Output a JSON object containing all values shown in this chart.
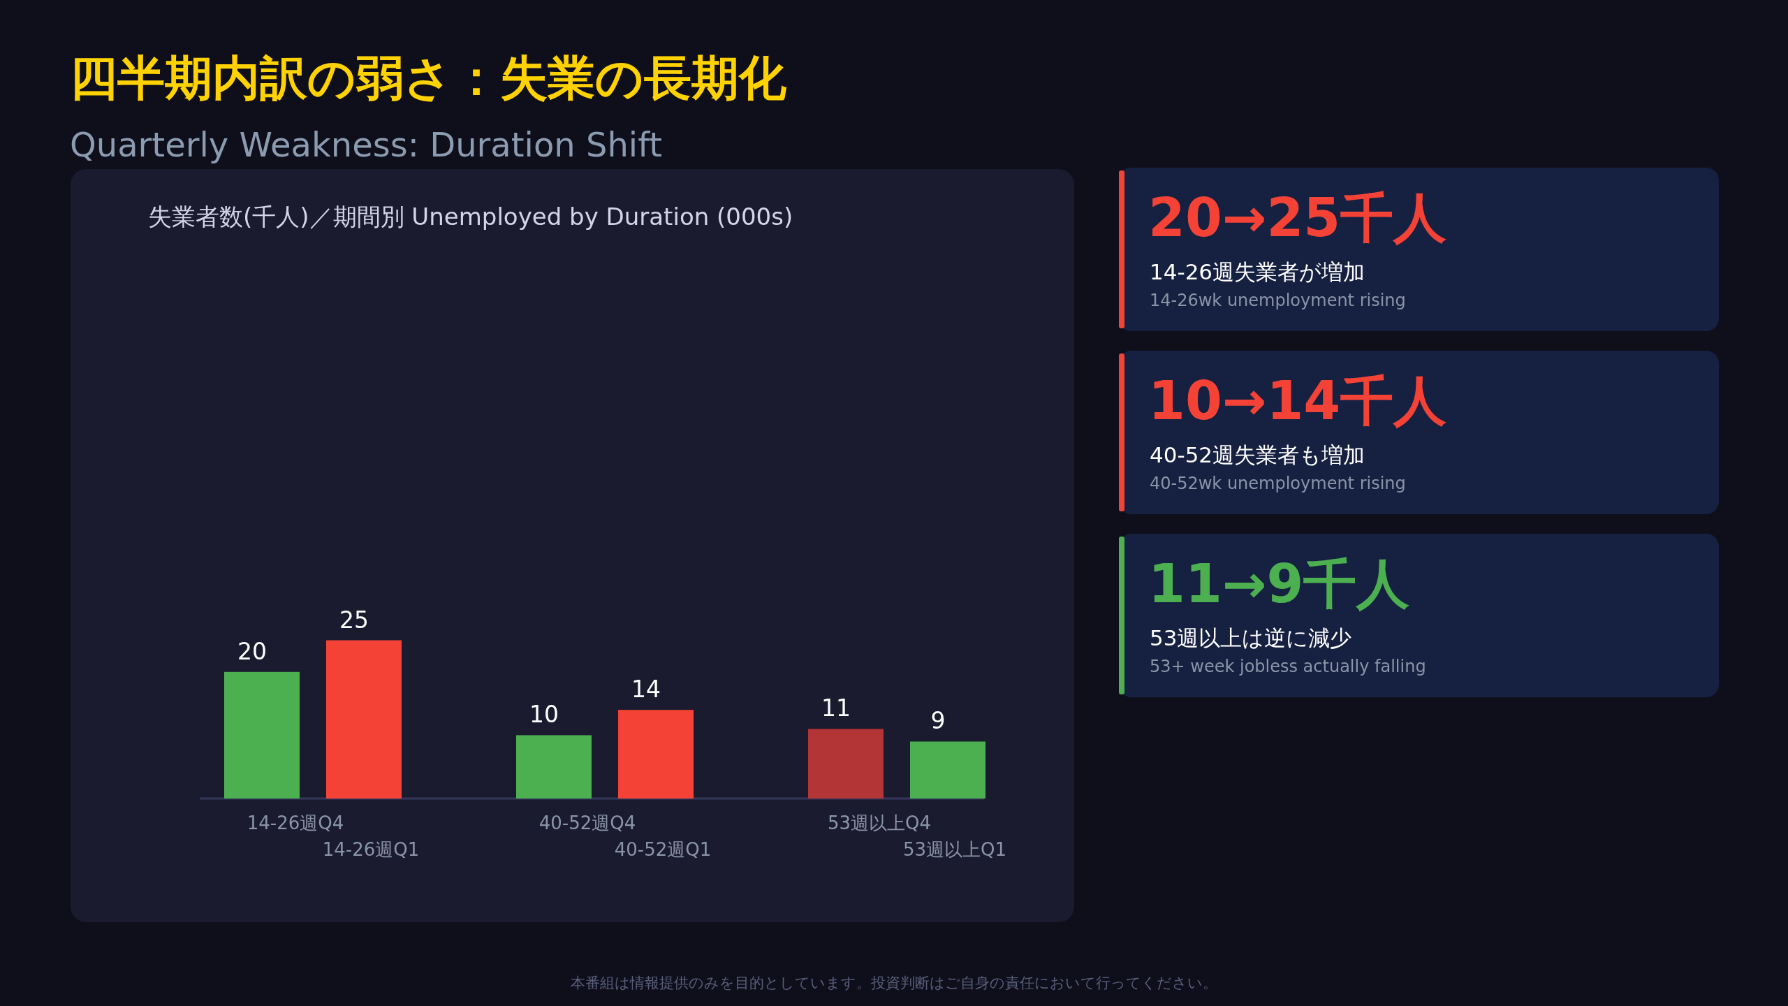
{
  "chart_data": [
    {
      "type": "bar",
      "title": "四半期内訳の弱さ：失業の長期化",
      "subtitle": "Quarterly Weakness: Duration Shift",
      "categories": [
        "14-26週Q4",
        "14-26週Q1",
        "40-52週Q4",
        "40-52週Q1",
        "53週以上Q4",
        "53週以上Q1"
      ],
      "values": [
        20,
        25,
        10,
        14,
        11,
        9
      ],
      "colors": [
        "#4caf50",
        "#f44336",
        "#4caf50",
        "#f44336",
        "#b33535",
        "#4caf50"
      ],
      "data_labels": true,
      "annotations": [
        "失業者数(千人)／期間別 Unemployed by Duration (000s)",
        "本番組は情報提供のみを目的としています。投資判断はご自身の責任において行ってください。"
      ]
    },
    {
      "type": "other",
      "title": "20→25千人",
      "subtitle": "14-26週失業者が増加",
      "annotations": [
        "14-26wk unemployment rising"
      ],
      "color": "#f44336"
    },
    {
      "type": "other",
      "title": "10→14千人",
      "subtitle": "40-52週失業者も増加",
      "annotations": [
        "40-52wk unemployment rising"
      ],
      "color": "#f44336"
    },
    {
      "type": "other",
      "title": "11→9千人",
      "subtitle": "53週以上は逆に減少",
      "annotations": [
        "53+ week jobless actually falling"
      ],
      "color": "#4caf50"
    }
  ]
}
